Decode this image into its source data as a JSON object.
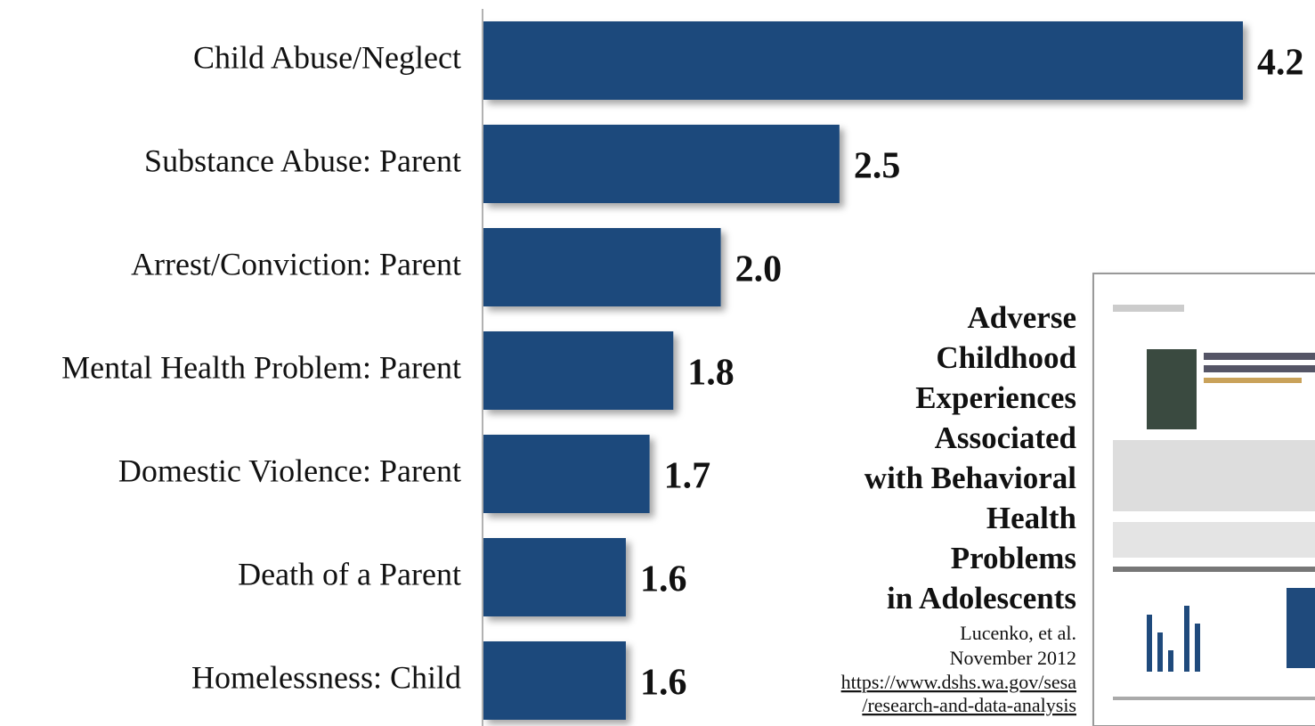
{
  "chart_data": {
    "type": "bar",
    "orientation": "horizontal",
    "categories": [
      "Child Abuse/Neglect",
      "Substance Abuse: Parent",
      "Arrest/Conviction: Parent",
      "Mental Health Problem: Parent",
      "Domestic Violence: Parent",
      "Death of a Parent",
      "Homelessness: Child"
    ],
    "values": [
      4.2,
      2.5,
      2.0,
      1.8,
      1.7,
      1.6,
      1.6
    ],
    "value_labels": [
      "4.2",
      "2.5",
      "2.0",
      "1.8",
      "1.7",
      "1.6",
      "1.6"
    ],
    "color": "#1f4a7c",
    "xlim": [
      1,
      4.2
    ],
    "title_lines": [
      "Adverse",
      "Childhood",
      "Experiences",
      "Associated",
      "with Behavioral",
      "Health",
      "Problems",
      "in Adolescents"
    ],
    "citation_lines": [
      "Lucenko, et al.",
      "November 2012"
    ],
    "link_lines": [
      "https://www.dshs.wa.gov/sesa",
      "/research-and-data-analysis"
    ]
  }
}
